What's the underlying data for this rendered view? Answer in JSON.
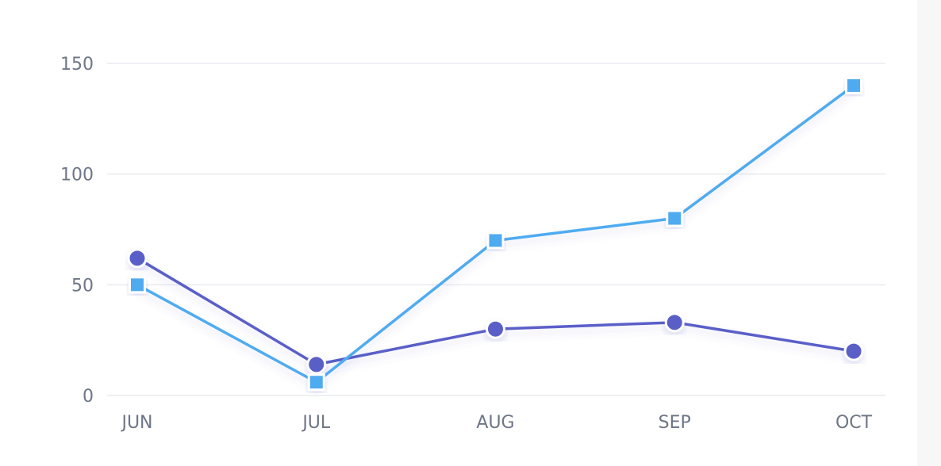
{
  "chart_data": {
    "type": "line",
    "categories": [
      "JUN",
      "JUL",
      "AUG",
      "SEP",
      "OCT"
    ],
    "ylim": [
      0,
      150
    ],
    "yticks": [
      0,
      50,
      100,
      150
    ],
    "grid": true,
    "series": [
      {
        "values": [
          62,
          14,
          30,
          33,
          20
        ],
        "color": "#5a5fc8",
        "marker": "circle"
      },
      {
        "values": [
          50,
          6,
          70,
          80,
          140
        ],
        "color": "#50abf0",
        "marker": "square"
      }
    ]
  }
}
